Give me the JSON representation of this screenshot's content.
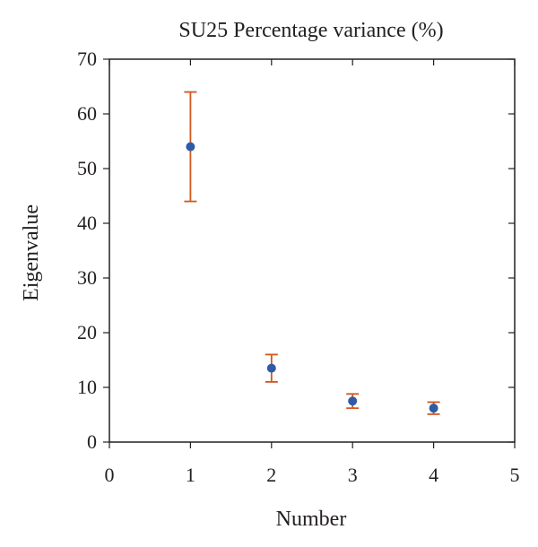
{
  "chart_data": {
    "type": "scatter",
    "title": "SU25 Percentage variance (%)",
    "xlabel": "Number",
    "ylabel": "Eigenvalue",
    "xlim": [
      0,
      5
    ],
    "ylim": [
      0,
      70
    ],
    "xticks": [
      0,
      1,
      2,
      3,
      4,
      5
    ],
    "yticks": [
      0,
      10,
      20,
      30,
      40,
      50,
      60,
      70
    ],
    "grid": false,
    "legend": "none",
    "series": [
      {
        "x": [
          1,
          2,
          3,
          4
        ],
        "y": [
          54,
          13.5,
          7.5,
          6.2
        ],
        "error_low": [
          44,
          11,
          6.2,
          5.1
        ],
        "error_high": [
          64,
          16,
          8.8,
          7.3
        ],
        "marker_color": "#2e5aa8",
        "error_color": "#d0571e"
      }
    ]
  }
}
